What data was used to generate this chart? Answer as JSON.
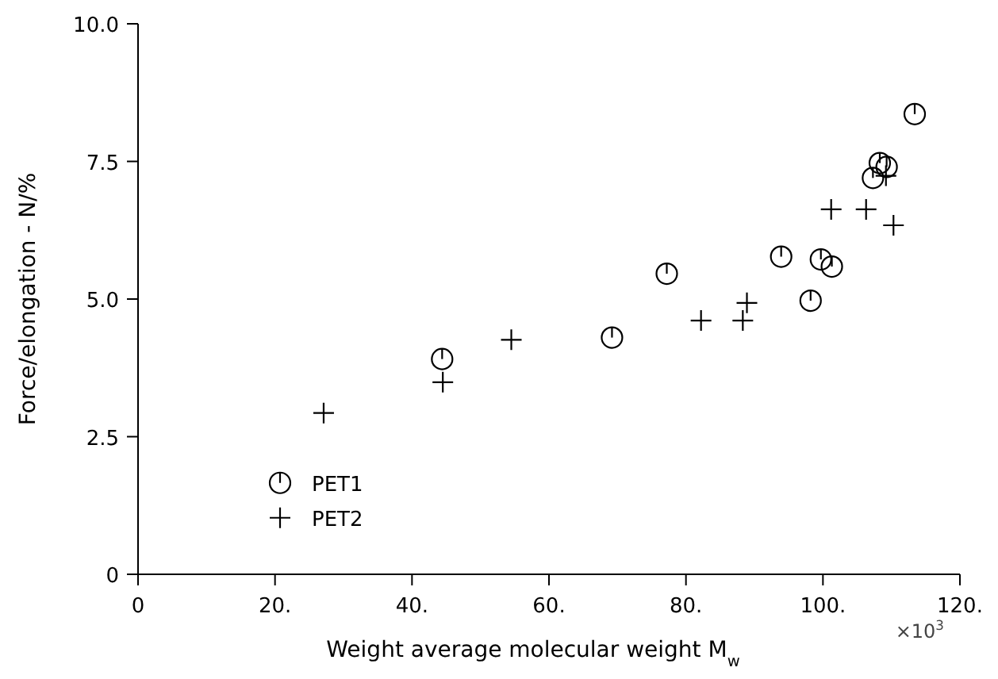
{
  "chart_data": {
    "type": "scatter",
    "xlabel": "Weight average molecular weight M$_{w}$",
    "ylabel": "Force/elongation - N/%",
    "xlim": [
      0,
      120
    ],
    "ylim": [
      0,
      10
    ],
    "xticks": [
      0,
      {
        "value": 20,
        "label": "20."
      },
      {
        "value": 40,
        "label": "40."
      },
      {
        "value": 60,
        "label": "60."
      },
      {
        "value": 80,
        "label": "80."
      },
      {
        "value": 100,
        "label": "100."
      },
      {
        "value": 120,
        "label": "120."
      }
    ],
    "yticks": [
      0,
      2.5,
      {
        "value": 5,
        "label": "5.0"
      },
      {
        "value": 7.5,
        "label": "7.5"
      },
      {
        "value": 10,
        "label": "10.0"
      }
    ],
    "annotations": [
      "×10$^{3}$"
    ],
    "legend": "bottom left",
    "grid": false,
    "series": [
      {
        "name": "PET1",
        "color": "#000000",
        "marker": "circle",
        "x": [
          44.4,
          69.2,
          77.2,
          93.9,
          99.7,
          101.3,
          98.2,
          113.4,
          108.3,
          109.3,
          107.3
        ],
        "values": [
          3.91,
          4.3,
          5.46,
          5.77,
          5.72,
          5.59,
          4.97,
          8.36,
          7.47,
          7.4,
          7.2
        ]
      },
      {
        "name": "PET2",
        "color": "#000000",
        "marker": "cross",
        "x": [
          27.1,
          44.5,
          54.5,
          82.2,
          88.3,
          88.9,
          101.2,
          106.3,
          110.3,
          109.2
        ],
        "values": [
          2.93,
          3.49,
          4.26,
          4.61,
          4.61,
          4.93,
          6.63,
          6.63,
          6.34,
          7.24
        ]
      }
    ]
  }
}
